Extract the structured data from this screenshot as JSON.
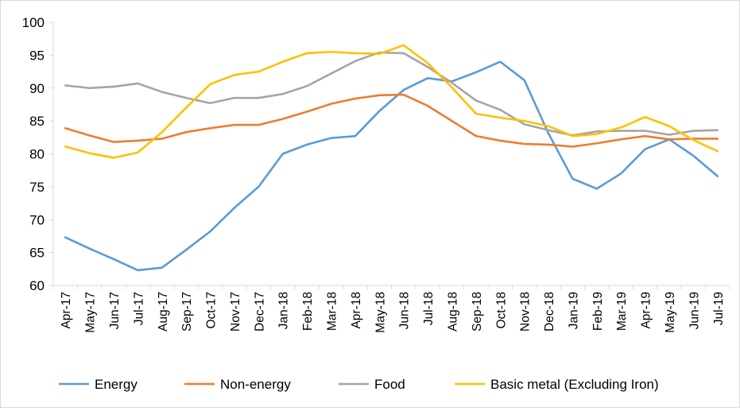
{
  "chart_data": {
    "type": "line",
    "title": "",
    "xlabel": "",
    "ylabel": "",
    "ylim": [
      60,
      100
    ],
    "yticks": [
      60,
      65,
      70,
      75,
      80,
      85,
      90,
      95,
      100
    ],
    "grid": false,
    "legend_position": "bottom",
    "categories": [
      "Apr-17",
      "May-17",
      "Jun-17",
      "Jul-17",
      "Aug-17",
      "Sep-17",
      "Oct-17",
      "Nov-17",
      "Dec-17",
      "Jan-18",
      "Feb-18",
      "Mar-18",
      "Apr-18",
      "May-18",
      "Jun-18",
      "Jul-18",
      "Aug-18",
      "Sep-18",
      "Oct-18",
      "Nov-18",
      "Dec-18",
      "Jan-19",
      "Feb-19",
      "Mar-19",
      "Apr-19",
      "May-19",
      "Jun-19",
      "Jul-19"
    ],
    "series": [
      {
        "name": "Energy",
        "color": "#5b9bd5",
        "values": [
          67.3,
          65.6,
          64.0,
          62.3,
          62.7,
          65.4,
          68.2,
          71.8,
          75.0,
          80.0,
          81.4,
          82.4,
          82.7,
          86.5,
          89.7,
          91.5,
          91.0,
          92.4,
          94.0,
          91.2,
          83.1,
          76.2,
          74.7,
          77.0,
          80.7,
          82.2,
          79.7,
          76.6
        ]
      },
      {
        "name": "Non-energy",
        "color": "#ed7d31",
        "values": [
          83.9,
          82.8,
          81.8,
          82.0,
          82.3,
          83.3,
          83.9,
          84.4,
          84.4,
          85.3,
          86.4,
          87.6,
          88.4,
          88.9,
          89.0,
          87.3,
          85.0,
          82.7,
          82.0,
          81.5,
          81.4,
          81.1,
          81.6,
          82.2,
          82.7,
          82.2,
          82.3,
          82.3
        ]
      },
      {
        "name": "Food",
        "color": "#a5a5a5",
        "values": [
          90.4,
          90.0,
          90.2,
          90.7,
          89.4,
          88.5,
          87.7,
          88.5,
          88.5,
          89.1,
          90.3,
          92.2,
          94.1,
          95.4,
          95.3,
          93.2,
          90.8,
          88.1,
          86.7,
          84.5,
          83.6,
          82.8,
          83.4,
          83.5,
          83.5,
          82.9,
          83.5,
          83.6
        ]
      },
      {
        "name": "Basic metal (Excluding Iron)",
        "color": "#ffc000",
        "values": [
          81.1,
          80.1,
          79.4,
          80.2,
          83.3,
          87.0,
          90.6,
          92.0,
          92.5,
          94.0,
          95.3,
          95.5,
          95.3,
          95.2,
          96.5,
          93.8,
          90.1,
          86.1,
          85.5,
          85.0,
          84.2,
          82.7,
          83.0,
          84.0,
          85.6,
          84.2,
          82.1,
          80.4
        ]
      }
    ]
  }
}
